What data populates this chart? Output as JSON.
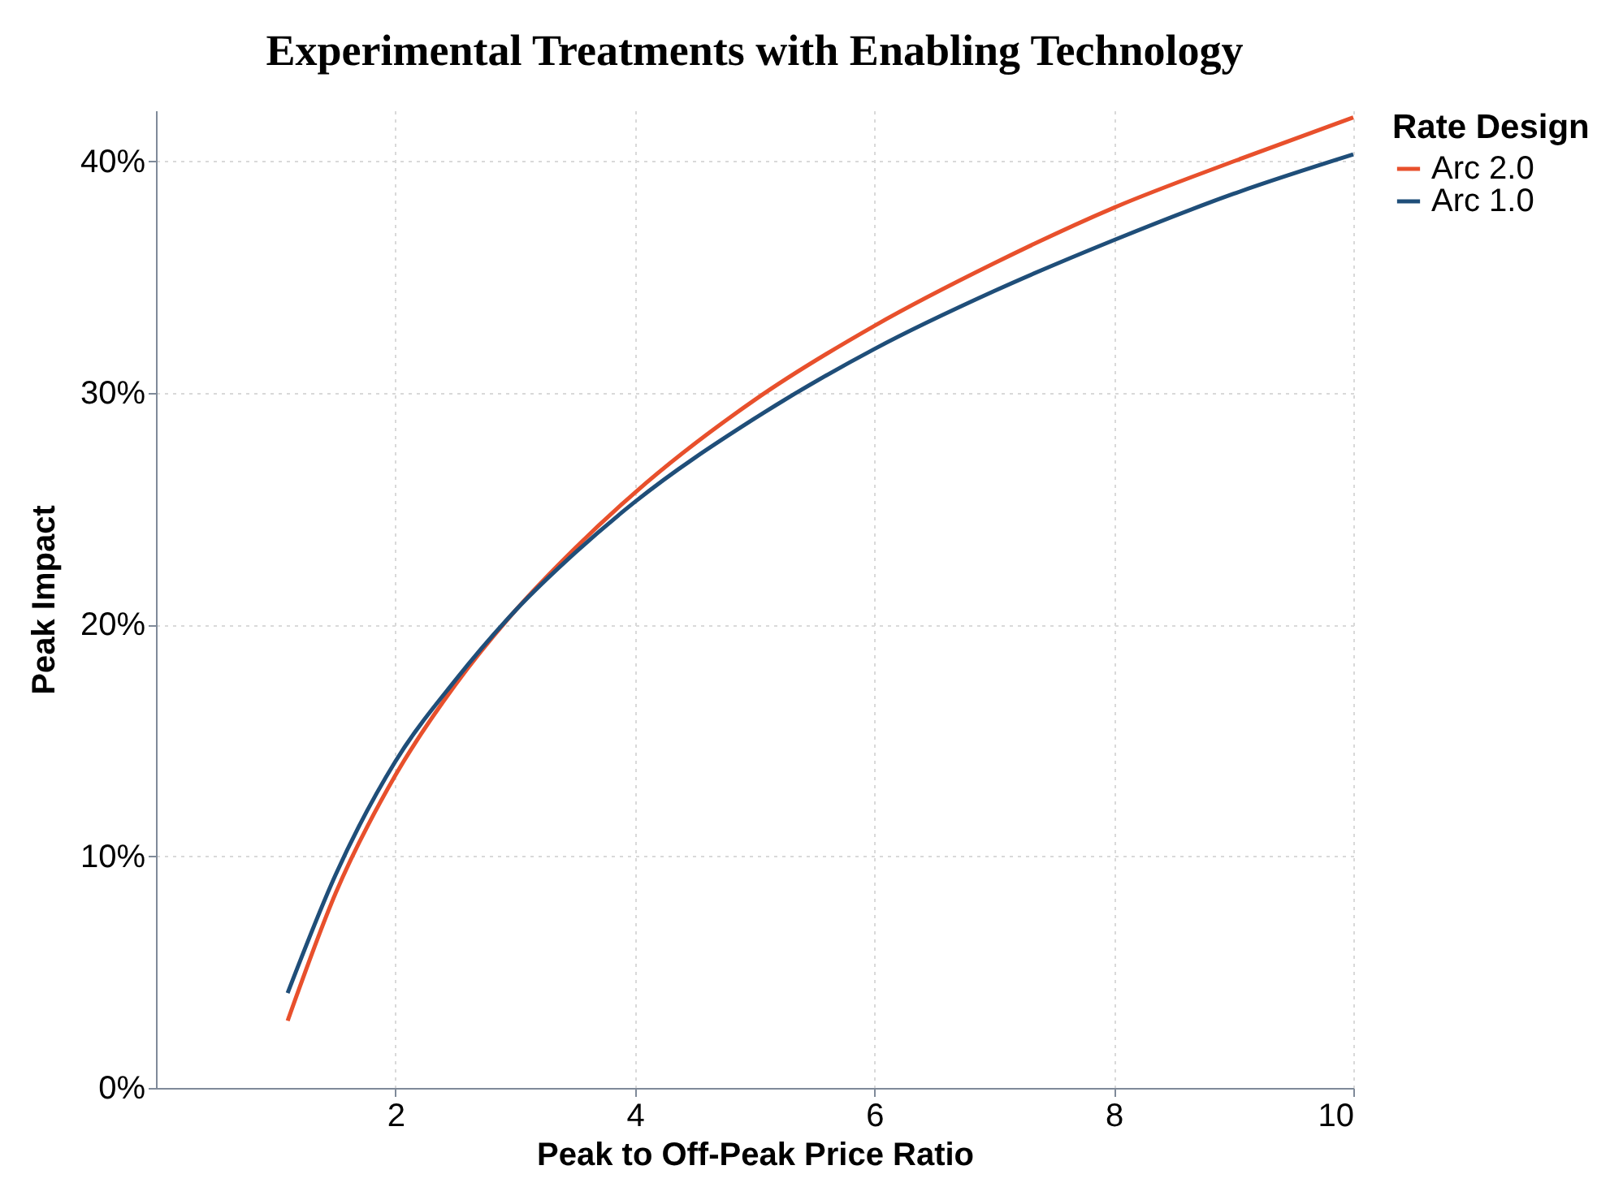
{
  "chart_data": {
    "type": "line",
    "title": "Experimental Treatments with Enabling Technology",
    "xlabel": "Peak to Off-Peak Price Ratio",
    "ylabel": "Peak Impact",
    "legend_title": "Rate Design",
    "x": [
      1.1,
      1.5,
      2,
      2.5,
      3,
      3.5,
      4,
      5,
      6,
      7,
      8,
      9,
      10
    ],
    "series": [
      {
        "name": "Arc 2.0",
        "color": "#e8502c",
        "values": [
          2.9,
          8.4,
          13.5,
          17.4,
          20.6,
          23.3,
          25.7,
          29.7,
          32.9,
          35.6,
          38.0,
          40.0,
          41.9
        ]
      },
      {
        "name": "Arc 1.0",
        "color": "#1f4e79",
        "values": [
          4.1,
          9.2,
          14.1,
          17.6,
          20.6,
          23.1,
          25.3,
          28.9,
          31.9,
          34.4,
          36.6,
          38.6,
          40.3
        ]
      }
    ],
    "xlim": [
      0,
      10
    ],
    "ylim": [
      0,
      42.2
    ],
    "xticks": [
      2,
      4,
      6,
      8,
      10
    ],
    "yticks": [
      {
        "value": 0,
        "label": "0%"
      },
      {
        "value": 10,
        "label": "10%"
      },
      {
        "value": 20,
        "label": "20%"
      },
      {
        "value": 30,
        "label": "30%"
      },
      {
        "value": 40,
        "label": "40%"
      }
    ],
    "grid": true,
    "legend": "right"
  }
}
